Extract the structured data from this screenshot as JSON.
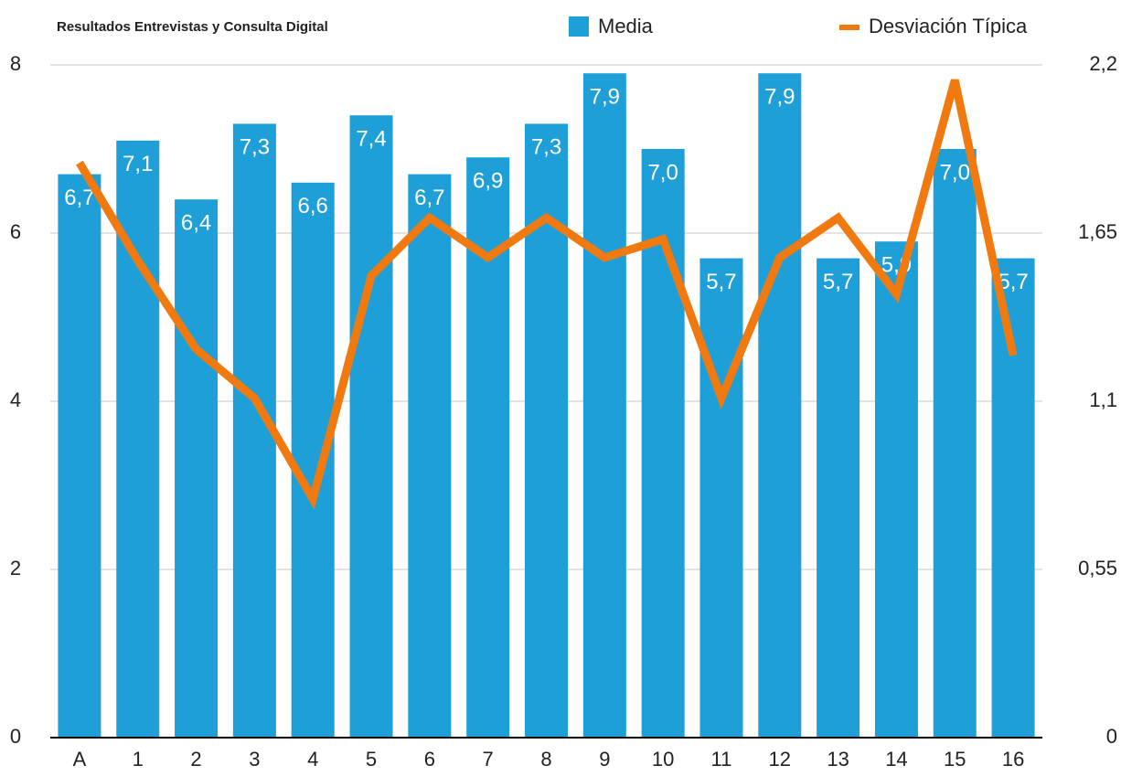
{
  "chart_data": {
    "type": "bar_line",
    "title": "Resultados Entrevistas y Consulta Digital",
    "categories": [
      "A",
      "1",
      "2",
      "3",
      "4",
      "5",
      "6",
      "7",
      "8",
      "9",
      "10",
      "11",
      "12",
      "13",
      "14",
      "15",
      "16"
    ],
    "series": [
      {
        "name": "Media",
        "type": "bar",
        "color": "#1f9fd8",
        "values": [
          6.7,
          7.1,
          6.4,
          7.3,
          6.6,
          7.4,
          6.7,
          6.9,
          7.3,
          7.9,
          7.0,
          5.7,
          7.9,
          5.7,
          5.9,
          7.0,
          5.7
        ],
        "value_labels": [
          "6,7",
          "7,1",
          "6,4",
          "7,3",
          "6,6",
          "7,4",
          "6,7",
          "6,9",
          "7,3",
          "7,9",
          "7,0",
          "5,7",
          "7,9",
          "5,7",
          "5,9",
          "7,0",
          "5,7"
        ]
      },
      {
        "name": "Desviación Típica",
        "type": "line",
        "axis": "y2",
        "color": "#f07a10",
        "values": [
          1.88,
          1.56,
          1.27,
          1.11,
          0.78,
          1.51,
          1.7,
          1.57,
          1.7,
          1.57,
          1.63,
          1.11,
          1.57,
          1.7,
          1.45,
          2.15,
          1.25
        ]
      }
    ],
    "ylim": [
      0,
      8
    ],
    "yticks": [
      0,
      2,
      4,
      6,
      8
    ],
    "y2lim": [
      0,
      2.2
    ],
    "y2ticks": [
      0,
      {
        "value": 0.55,
        "label": "0,55"
      },
      {
        "value": 1.1,
        "label": "1,1"
      },
      {
        "value": 1.65,
        "label": "1,65"
      },
      {
        "value": 2.2,
        "label": "2,2"
      }
    ],
    "grid": true,
    "legend": "top"
  }
}
